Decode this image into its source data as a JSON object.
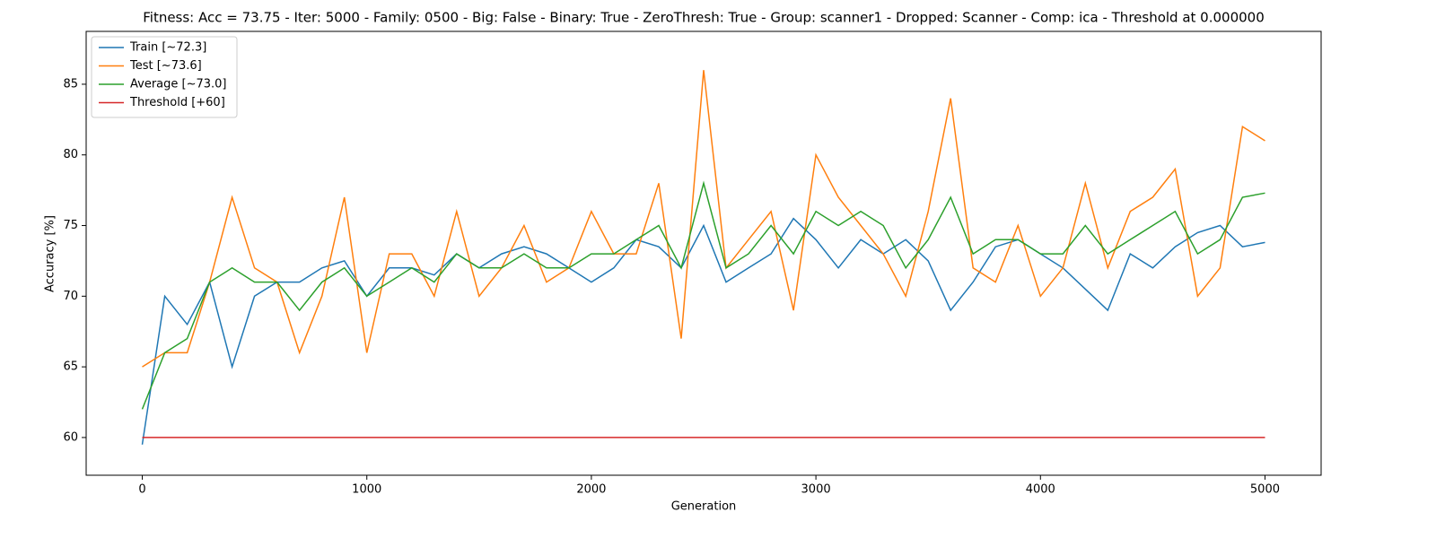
{
  "chart_data": {
    "type": "line",
    "title": "Fitness: Acc = 73.75 - Iter: 5000 - Family: 0500 - Big: False - Binary: True - ZeroThresh: True - Group: scanner1 - Dropped: Scanner - Comp: ica - Threshold at 0.000000",
    "x_label": "Generation",
    "y_label": "Accuracy [%]",
    "x": [
      0,
      100,
      200,
      300,
      400,
      500,
      600,
      700,
      800,
      900,
      1000,
      1100,
      1200,
      1300,
      1400,
      1500,
      1600,
      1700,
      1800,
      1900,
      2000,
      2100,
      2200,
      2300,
      2400,
      2500,
      2600,
      2700,
      2800,
      2900,
      3000,
      3100,
      3200,
      3300,
      3400,
      3500,
      3600,
      3700,
      3800,
      3900,
      4000,
      4100,
      4200,
      4300,
      4400,
      4500,
      4600,
      4700,
      4800,
      4900,
      5000
    ],
    "series": [
      {
        "name": "Train [~72.3]",
        "color": "#1f77b4",
        "values": [
          59.5,
          70,
          68,
          71,
          65,
          70,
          71,
          71,
          72,
          72.5,
          70,
          72,
          72,
          71.5,
          73,
          72,
          73,
          73.5,
          73,
          72,
          71,
          72,
          74,
          73.5,
          72,
          75,
          71,
          72,
          73,
          75.5,
          74,
          72,
          74,
          73,
          74,
          72.5,
          69,
          71,
          73.5,
          74,
          73,
          72,
          70.5,
          69,
          73,
          72,
          73.5,
          74.5,
          75,
          73.5,
          73.8
        ]
      },
      {
        "name": "Test [~73.6]",
        "color": "#ff7f0e",
        "values": [
          65,
          66,
          66,
          71,
          77,
          72,
          71,
          66,
          70,
          77,
          66,
          73,
          73,
          70,
          76,
          70,
          72,
          75,
          71,
          72,
          76,
          73,
          73,
          78,
          67,
          86,
          72,
          74,
          76,
          69,
          80,
          77,
          75,
          73,
          70,
          76,
          84,
          72,
          71,
          75,
          70,
          72,
          78,
          72,
          76,
          77,
          79,
          70,
          72,
          82,
          81
        ]
      },
      {
        "name": "Average [~73.0]",
        "color": "#2ca02c",
        "values": [
          62,
          66,
          67,
          71,
          72,
          71,
          71,
          69,
          71,
          72,
          70,
          71,
          72,
          71,
          73,
          72,
          72,
          73,
          72,
          72,
          73,
          73,
          74,
          75,
          72,
          78,
          72,
          73,
          75,
          73,
          76,
          75,
          76,
          75,
          72,
          74,
          77,
          73,
          74,
          74,
          73,
          73,
          75,
          73,
          74,
          75,
          76,
          73,
          74,
          77,
          77.3
        ]
      },
      {
        "name": "Threshold [+60]",
        "color": "#d62728",
        "values": [
          60,
          60,
          60,
          60,
          60,
          60,
          60,
          60,
          60,
          60,
          60,
          60,
          60,
          60,
          60,
          60,
          60,
          60,
          60,
          60,
          60,
          60,
          60,
          60,
          60,
          60,
          60,
          60,
          60,
          60,
          60,
          60,
          60,
          60,
          60,
          60,
          60,
          60,
          60,
          60,
          60,
          60,
          60,
          60,
          60,
          60,
          60,
          60,
          60,
          60,
          60
        ]
      }
    ],
    "xlim": [
      -250,
      5250
    ],
    "ylim": [
      57.33,
      88.74
    ],
    "xticks": [
      0,
      1000,
      2000,
      3000,
      4000,
      5000
    ],
    "yticks": [
      60,
      65,
      70,
      75,
      80,
      85
    ],
    "legend": "upper left"
  }
}
